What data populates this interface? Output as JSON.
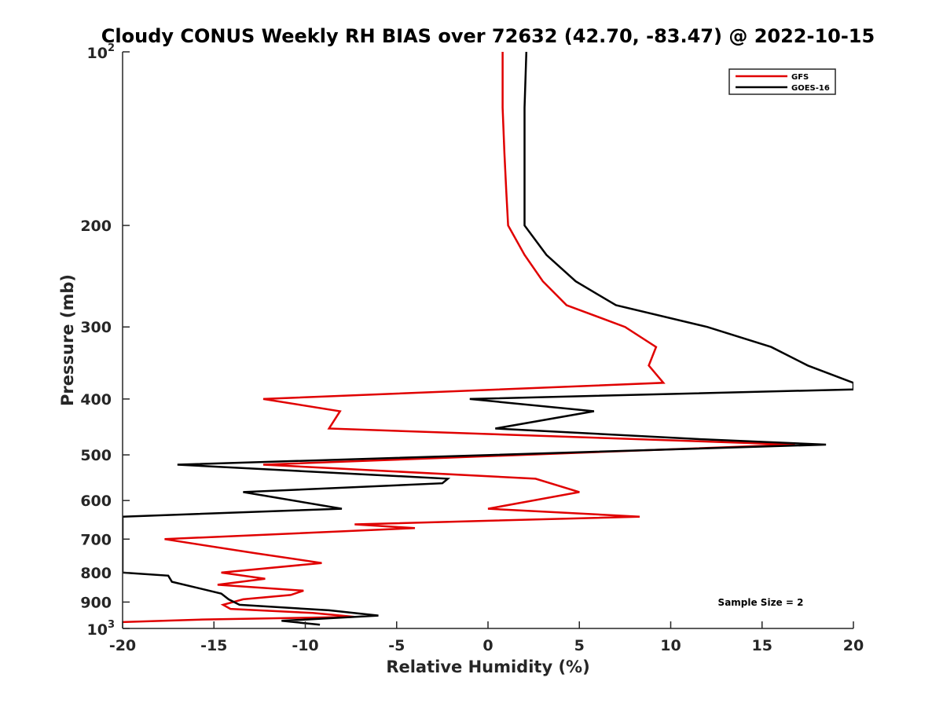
{
  "chart_data": {
    "type": "line",
    "title": "Cloudy CONUS Weekly RH BIAS over 72632 (42.70, -83.47) @ 2022-10-15",
    "xlabel": "Relative Humidity (%)",
    "ylabel": "Pressure (mb)",
    "xlim": [
      -20,
      20
    ],
    "ylim": [
      1000,
      100
    ],
    "yscale": "log",
    "grid": false,
    "legend_position": "top-right",
    "x_ticks": [
      -20,
      -15,
      -10,
      -5,
      0,
      5,
      10,
      15,
      20
    ],
    "x_tick_labels": [
      "-20",
      "-15",
      "-10",
      "-5",
      "0",
      "5",
      "10",
      "15",
      "20"
    ],
    "y_ticks": [
      100,
      200,
      300,
      400,
      500,
      600,
      700,
      800,
      900,
      1000
    ],
    "y_tick_labels": [
      {
        "base": "10",
        "exp": "2"
      },
      {
        "base": "200",
        "exp": ""
      },
      {
        "base": "300",
        "exp": ""
      },
      {
        "base": "400",
        "exp": ""
      },
      {
        "base": "500",
        "exp": ""
      },
      {
        "base": "600",
        "exp": ""
      },
      {
        "base": "700",
        "exp": ""
      },
      {
        "base": "800",
        "exp": ""
      },
      {
        "base": "900",
        "exp": ""
      },
      {
        "base": "10",
        "exp": "3"
      }
    ],
    "annotation": "Sample Size = 2",
    "series": [
      {
        "name": "GFS",
        "color": "#e00000",
        "points": [
          [
            0.8,
            100
          ],
          [
            0.8,
            125
          ],
          [
            0.9,
            150
          ],
          [
            1.0,
            175
          ],
          [
            1.1,
            200
          ],
          [
            2.0,
            225
          ],
          [
            3.0,
            250
          ],
          [
            4.3,
            275
          ],
          [
            7.5,
            300
          ],
          [
            9.2,
            325
          ],
          [
            8.8,
            350
          ],
          [
            9.6,
            375
          ],
          [
            -12.3,
            400
          ],
          [
            -8.1,
            420
          ],
          [
            -8.7,
            450
          ],
          [
            16.8,
            480
          ],
          [
            -12.3,
            520
          ],
          [
            2.6,
            550
          ],
          [
            5.0,
            580
          ],
          [
            0.0,
            620
          ],
          [
            8.3,
            640
          ],
          [
            -7.3,
            660
          ],
          [
            -4.0,
            670
          ],
          [
            -17.7,
            700
          ],
          [
            -12.8,
            740
          ],
          [
            -9.1,
            770
          ],
          [
            -14.6,
            800
          ],
          [
            -12.2,
            820
          ],
          [
            -14.8,
            840
          ],
          [
            -10.1,
            860
          ],
          [
            -10.8,
            875
          ],
          [
            -13.4,
            890
          ],
          [
            -14.5,
            910
          ],
          [
            -14.1,
            925
          ],
          [
            -9.6,
            940
          ],
          [
            -7.3,
            955
          ],
          [
            -15.6,
            965
          ],
          [
            -20.0,
            975
          ]
        ]
      },
      {
        "name": "GOES-16",
        "color": "#000000",
        "points": [
          [
            2.1,
            100
          ],
          [
            2.0,
            125
          ],
          [
            2.0,
            150
          ],
          [
            2.0,
            175
          ],
          [
            2.0,
            200
          ],
          [
            3.2,
            225
          ],
          [
            4.8,
            250
          ],
          [
            7.0,
            275
          ],
          [
            12.0,
            300
          ],
          [
            15.5,
            325
          ],
          [
            17.5,
            350
          ],
          [
            20.0,
            375
          ],
          [
            20.0,
            385
          ],
          [
            -1.0,
            400
          ],
          [
            5.8,
            420
          ],
          [
            0.4,
            450
          ],
          [
            11.8,
            470
          ],
          [
            18.5,
            480
          ],
          [
            -17.0,
            520
          ],
          [
            -2.2,
            550
          ],
          [
            -2.5,
            560
          ],
          [
            -13.4,
            580
          ],
          [
            -8.0,
            620
          ],
          [
            -20.0,
            640
          ],
          [
            -20.0,
            680
          ],
          [
            -20.0,
            720
          ],
          [
            -20.0,
            800
          ],
          [
            -17.5,
            810
          ],
          [
            -17.3,
            830
          ],
          [
            -14.6,
            870
          ],
          [
            -14.2,
            890
          ],
          [
            -13.6,
            910
          ],
          [
            -8.7,
            930
          ],
          [
            -6.0,
            950
          ],
          [
            -11.3,
            970
          ],
          [
            -9.2,
            985
          ]
        ]
      }
    ]
  }
}
